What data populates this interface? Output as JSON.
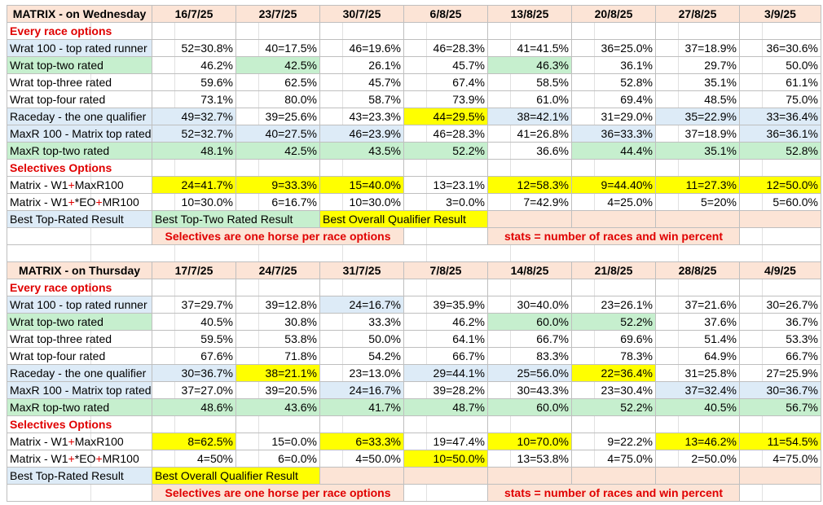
{
  "wednesday": {
    "title": "MATRIX - on Wednesday",
    "dates": [
      "16/7/25",
      "23/7/25",
      "30/7/25",
      "6/8/25",
      "13/8/25",
      "20/8/25",
      "27/8/25",
      "3/9/25"
    ],
    "section1": "Every race options",
    "rows": [
      {
        "label": "Wrat 100 - top rated runner",
        "values": [
          "52=30.8%",
          "40=17.5%",
          "46=19.6%",
          "46=28.3%",
          "41=41.5%",
          "36=25.0%",
          "37=18.9%",
          "36=30.6%"
        ]
      },
      {
        "label": "Wrat top-two rated",
        "values": [
          "46.2%",
          "42.5%",
          "26.1%",
          "45.7%",
          "46.3%",
          "36.1%",
          "29.7%",
          "50.0%"
        ]
      },
      {
        "label": "Wrat top-three rated",
        "values": [
          "59.6%",
          "62.5%",
          "45.7%",
          "67.4%",
          "58.5%",
          "52.8%",
          "35.1%",
          "61.1%"
        ]
      },
      {
        "label": "Wrat top-four rated",
        "values": [
          "73.1%",
          "80.0%",
          "58.7%",
          "73.9%",
          "61.0%",
          "69.4%",
          "48.5%",
          "75.0%"
        ]
      },
      {
        "label": "Raceday - the one qualifier",
        "values": [
          "49=32.7%",
          "39=25.6%",
          "43=23.3%",
          "44=29.5%",
          "38=42.1%",
          "31=29.0%",
          "35=22.9%",
          "33=36.4%"
        ]
      },
      {
        "label": "MaxR 100 - Matrix top rated",
        "values": [
          "52=32.7%",
          "40=27.5%",
          "46=23.9%",
          "46=28.3%",
          "41=26.8%",
          "36=33.3%",
          "37=18.9%",
          "36=36.1%"
        ]
      },
      {
        "label": "MaxR top-two rated",
        "values": [
          "48.1%",
          "42.5%",
          "43.5%",
          "52.2%",
          "36.6%",
          "44.4%",
          "35.1%",
          "52.8%"
        ]
      }
    ],
    "section2": "Selectives Options",
    "sel_rows": [
      {
        "label_a": "Matrix - W1",
        "plus1": "+",
        "label_b": "MaxR100",
        "label_c": "",
        "values": [
          "24=41.7%",
          "9=33.3%",
          "15=40.0%",
          "13=23.1%",
          "12=58.3%",
          "9=44.40%",
          "11=27.3%",
          "12=50.0%"
        ]
      },
      {
        "label_a": "Matrix - W1",
        "plus1": "+",
        "label_b": "*EO",
        "plus2": "+",
        "label_c": "MR100",
        "values": [
          "10=30.0%",
          "6=16.7%",
          "10=30.0%",
          "3=0.0%",
          "7=42.9%",
          "4=25.0%",
          "5=20%",
          "5=60.0%"
        ]
      }
    ],
    "legend": [
      "Best Top-Rated Result",
      "Best Top-Two Rated Result",
      "Best Overall Qualifier Result"
    ],
    "notes": [
      "Selectives are one horse per race options",
      "stats = number of races and win percent"
    ]
  },
  "thursday": {
    "title": "MATRIX - on Thursday",
    "dates": [
      "17/7/25",
      "24/7/25",
      "31/7/25",
      "7/8/25",
      "14/8/25",
      "21/8/25",
      "28/8/25",
      "4/9/25"
    ],
    "section1": "Every race options",
    "rows": [
      {
        "label": "Wrat 100 - top rated runner",
        "values": [
          "37=29.7%",
          "39=12.8%",
          "24=16.7%",
          "39=35.9%",
          "30=40.0%",
          "23=26.1%",
          "37=21.6%",
          "30=26.7%"
        ]
      },
      {
        "label": "Wrat top-two rated",
        "values": [
          "40.5%",
          "30.8%",
          "33.3%",
          "46.2%",
          "60.0%",
          "52.2%",
          "37.6%",
          "36.7%"
        ]
      },
      {
        "label": "Wrat top-three rated",
        "values": [
          "59.5%",
          "53.8%",
          "50.0%",
          "64.1%",
          "66.7%",
          "69.6%",
          "51.4%",
          "53.3%"
        ]
      },
      {
        "label": "Wrat top-four rated",
        "values": [
          "67.6%",
          "71.8%",
          "54.2%",
          "66.7%",
          "83.3%",
          "78.3%",
          "64.9%",
          "66.7%"
        ]
      },
      {
        "label": "Raceday - the one qualifier",
        "values": [
          "30=36.7%",
          "38=21.1%",
          "23=13.0%",
          "29=44.1%",
          "25=56.0%",
          "22=36.4%",
          "31=25.8%",
          "27=25.9%"
        ]
      },
      {
        "label": "MaxR 100 - Matrix top rated",
        "values": [
          "37=27.0%",
          "39=20.5%",
          "24=16.7%",
          "39=28.2%",
          "30=43.3%",
          "23=30.4%",
          "37=32.4%",
          "30=36.7%"
        ]
      },
      {
        "label": "MaxR top-two rated",
        "values": [
          "48.6%",
          "43.6%",
          "41.7%",
          "48.7%",
          "60.0%",
          "52.2%",
          "40.5%",
          "56.7%"
        ]
      }
    ],
    "section2": "Selectives Options",
    "sel_rows": [
      {
        "label_a": "Matrix - W1",
        "plus1": "+",
        "label_b": "MaxR100",
        "label_c": "",
        "values": [
          "8=62.5%",
          "15=0.0%",
          "6=33.3%",
          "19=47.4%",
          "10=70.0%",
          "9=22.2%",
          "13=46.2%",
          "11=54.5%"
        ]
      },
      {
        "label_a": "Matrix - W1",
        "plus1": "+",
        "label_b": "*EO",
        "plus2": "+",
        "label_c": "MR100",
        "values": [
          "4=50%",
          "6=0.0%",
          "4=50.0%",
          "10=50.0%",
          "13=53.8%",
          "4=75.0%",
          "2=50.0%",
          "4=75.0%"
        ]
      }
    ],
    "legend": [
      "Best Top-Rated Result",
      "Best Overall Qualifier Result"
    ],
    "notes": [
      "Selectives are one horse per race options",
      "stats = number of races and win percent"
    ]
  },
  "colors": {
    "header": "#fce4d6",
    "blue": "#ddebf7",
    "green": "#c6efce",
    "yellow": "#ffff00",
    "red": "#e00000"
  }
}
